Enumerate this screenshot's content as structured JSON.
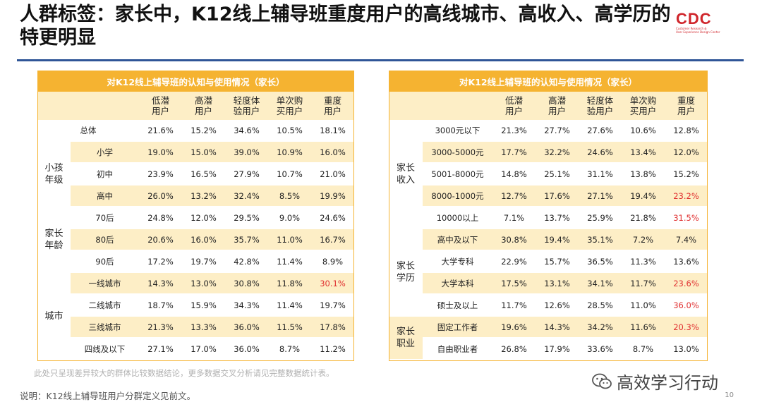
{
  "title": {
    "line1": "人群标签：家长中，K12线上辅导班重度用户的高线城市、高收入、高学历的",
    "line2": "特更明显"
  },
  "logo": {
    "mark": "CDC",
    "sub1": "Customer Research &",
    "sub2": "User Experience Design Center"
  },
  "columns": [
    "低潜\n用户",
    "高潜\n用户",
    "轻度体\n验用户",
    "单次购\n买用户",
    "重度\n用户"
  ],
  "left_table": {
    "header": "对K12线上辅导班的认知与使用情况（家长）",
    "rows": [
      {
        "group": "",
        "label": "总体",
        "values": [
          "21.6%",
          "15.2%",
          "34.6%",
          "10.5%",
          "18.1%"
        ]
      },
      {
        "group": "小孩\n年级",
        "label": "小学",
        "values": [
          "19.0%",
          "15.0%",
          "39.0%",
          "10.9%",
          "16.0%"
        ]
      },
      {
        "group": "",
        "label": "初中",
        "values": [
          "23.9%",
          "16.5%",
          "27.9%",
          "10.7%",
          "21.0%"
        ]
      },
      {
        "group": "",
        "label": "高中",
        "values": [
          "26.0%",
          "13.2%",
          "32.4%",
          "8.5%",
          "19.9%"
        ]
      },
      {
        "group": "家长\n年龄",
        "label": "70后",
        "values": [
          "24.8%",
          "12.0%",
          "29.5%",
          "9.0%",
          "24.6%"
        ]
      },
      {
        "group": "",
        "label": "80后",
        "values": [
          "20.6%",
          "16.0%",
          "35.7%",
          "11.0%",
          "16.7%"
        ]
      },
      {
        "group": "",
        "label": "90后",
        "values": [
          "17.2%",
          "19.7%",
          "42.8%",
          "11.4%",
          "8.9%"
        ]
      },
      {
        "group": "城市",
        "label": "一线城市",
        "values": [
          "14.3%",
          "13.0%",
          "30.8%",
          "11.8%",
          "30.1%"
        ]
      },
      {
        "group": "",
        "label": "二线城市",
        "values": [
          "18.7%",
          "15.9%",
          "34.3%",
          "11.4%",
          "19.7%"
        ]
      },
      {
        "group": "",
        "label": "三线城市",
        "values": [
          "21.3%",
          "13.3%",
          "36.0%",
          "11.5%",
          "17.8%"
        ]
      },
      {
        "group": "",
        "label": "四线及以下",
        "values": [
          "27.1%",
          "17.0%",
          "36.0%",
          "8.7%",
          "11.2%"
        ]
      }
    ]
  },
  "right_table": {
    "header": "对K12线上辅导班的认知与使用情况（家长）",
    "rows": [
      {
        "group": "家长\n收入",
        "label": "3000元以下",
        "values": [
          "21.3%",
          "27.7%",
          "27.6%",
          "10.6%",
          "12.8%"
        ]
      },
      {
        "group": "",
        "label": "3000-5000元",
        "values": [
          "17.7%",
          "32.2%",
          "24.6%",
          "13.4%",
          "12.0%"
        ]
      },
      {
        "group": "",
        "label": "5001-8000元",
        "values": [
          "14.8%",
          "25.1%",
          "31.1%",
          "13.8%",
          "15.2%"
        ]
      },
      {
        "group": "",
        "label": "8000-1000元",
        "values": [
          "12.7%",
          "17.6%",
          "27.1%",
          "19.4%",
          "23.2%"
        ]
      },
      {
        "group": "",
        "label": "10000以上",
        "values": [
          "7.1%",
          "13.7%",
          "25.9%",
          "21.8%",
          "31.5%"
        ]
      },
      {
        "group": "家长\n学历",
        "label": "高中及以下",
        "values": [
          "30.8%",
          "19.4%",
          "35.1%",
          "7.2%",
          "7.4%"
        ]
      },
      {
        "group": "",
        "label": "大学专科",
        "values": [
          "22.9%",
          "15.7%",
          "36.5%",
          "11.3%",
          "13.6%"
        ]
      },
      {
        "group": "",
        "label": "大学本科",
        "values": [
          "17.5%",
          "13.1%",
          "34.1%",
          "11.7%",
          "23.6%"
        ]
      },
      {
        "group": "",
        "label": "硕士及以上",
        "values": [
          "11.7%",
          "12.6%",
          "28.5%",
          "11.0%",
          "36.0%"
        ]
      },
      {
        "group": "家长\n职业",
        "label": "固定工作者",
        "values": [
          "19.6%",
          "14.3%",
          "34.2%",
          "11.6%",
          "20.3%"
        ]
      },
      {
        "group": "",
        "label": "自由职业者",
        "values": [
          "26.8%",
          "17.9%",
          "33.6%",
          "8.7%",
          "13.0%"
        ]
      }
    ]
  },
  "highlight_color": "#e03030",
  "footnote": "此处只呈现差异较大的群体比较数据结论，更多数据交叉分析请见完整数据统计表。",
  "note": "说明：K12线上辅导班用户分群定义见前文。",
  "page_number": "10",
  "watermark": {
    "icon": "wechat-icon",
    "text": "高效学习行动"
  }
}
